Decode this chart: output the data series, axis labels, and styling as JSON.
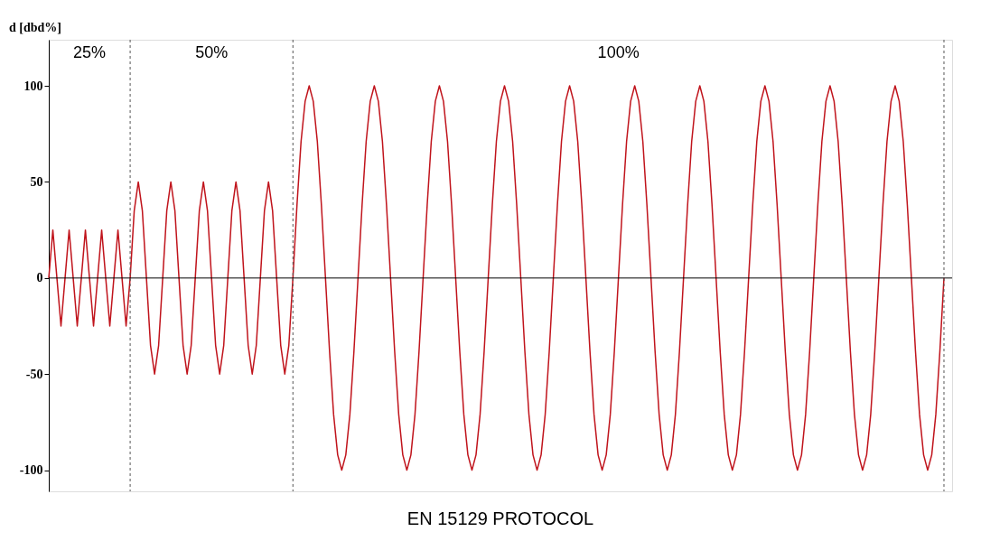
{
  "chart_data": {
    "type": "line",
    "title": "EN 15129 PROTOCOL",
    "ylabel": "d [dbd%]",
    "categories": [
      null,
      null,
      null,
      null,
      null,
      null,
      null,
      null,
      null,
      null,
      null,
      null,
      null,
      null,
      null,
      null,
      null,
      null,
      null,
      null,
      null,
      null,
      null,
      null,
      null,
      null,
      null,
      null,
      null,
      null,
      null,
      null,
      null,
      null,
      null,
      null,
      null,
      null,
      null,
      null,
      null,
      null,
      null,
      null,
      null,
      null,
      null,
      null,
      null,
      null,
      null,
      null,
      null,
      null,
      null,
      null,
      null,
      null,
      null,
      null,
      null,
      null,
      null,
      null,
      null,
      null,
      null,
      null,
      null,
      null,
      null,
      null,
      null,
      null,
      null,
      null,
      null,
      null,
      null,
      null,
      null,
      null,
      null,
      null,
      null,
      null,
      null,
      null,
      null,
      null,
      null,
      null,
      null,
      null,
      null,
      null,
      null,
      null,
      null,
      null,
      null,
      null,
      null,
      null,
      null,
      null,
      null,
      null,
      null,
      null,
      null,
      null,
      null,
      null,
      null,
      null,
      null,
      null,
      null,
      null,
      null,
      null,
      null,
      null,
      null,
      null,
      null,
      null,
      null,
      null,
      null,
      null,
      null,
      null,
      null,
      null,
      null,
      null,
      null,
      null,
      null,
      null,
      null,
      null,
      null,
      null,
      null,
      null,
      null,
      null,
      null,
      null,
      null,
      null,
      null,
      null,
      null,
      null,
      null,
      null,
      null,
      null,
      null,
      null,
      null,
      null,
      null,
      null,
      null,
      null,
      null,
      null,
      null,
      null,
      null,
      null,
      null,
      null,
      null,
      null,
      null,
      null,
      null,
      null,
      null,
      null,
      null,
      null,
      null,
      null,
      null,
      null,
      null,
      null,
      null,
      null,
      null,
      null,
      null,
      null,
      null,
      null,
      null,
      null,
      null,
      null,
      null,
      null,
      null,
      null,
      null,
      null,
      null,
      null,
      null,
      null,
      null,
      null,
      null,
      null,
      null
    ],
    "series": [
      {
        "color": "#c0141c",
        "values": [
          0,
          25,
          0,
          -25,
          0,
          25,
          0,
          -25,
          0,
          25,
          0,
          -25,
          0,
          25,
          0,
          -25,
          0,
          25,
          0,
          -25,
          0,
          35,
          50,
          35,
          0,
          -35,
          -50,
          -35,
          0,
          35,
          50,
          35,
          0,
          -35,
          -50,
          -35,
          0,
          35,
          50,
          35,
          0,
          -35,
          -50,
          -35,
          0,
          35,
          50,
          35,
          0,
          -35,
          -50,
          -35,
          0,
          35,
          50,
          35,
          0,
          -35,
          -50,
          -35,
          0,
          38,
          71,
          92,
          100,
          92,
          71,
          38,
          0,
          -38,
          -71,
          -92,
          -100,
          -92,
          -71,
          -38,
          0,
          38,
          71,
          92,
          100,
          92,
          71,
          38,
          0,
          -38,
          -71,
          -92,
          -100,
          -92,
          -71,
          -38,
          0,
          38,
          71,
          92,
          100,
          92,
          71,
          38,
          0,
          -38,
          -71,
          -92,
          -100,
          -92,
          -71,
          -38,
          0,
          38,
          71,
          92,
          100,
          92,
          71,
          38,
          0,
          -38,
          -71,
          -92,
          -100,
          -92,
          -71,
          -38,
          0,
          38,
          71,
          92,
          100,
          92,
          71,
          38,
          0,
          -38,
          -71,
          -92,
          -100,
          -92,
          -71,
          -38,
          0,
          38,
          71,
          92,
          100,
          92,
          71,
          38,
          0,
          -38,
          -71,
          -92,
          -100,
          -92,
          -71,
          -38,
          0,
          38,
          71,
          92,
          100,
          92,
          71,
          38,
          0,
          -38,
          -71,
          -92,
          -100,
          -92,
          -71,
          -38,
          0,
          38,
          71,
          92,
          100,
          92,
          71,
          38,
          0,
          -38,
          -71,
          -92,
          -100,
          -92,
          -71,
          -38,
          0,
          38,
          71,
          92,
          100,
          92,
          71,
          38,
          0,
          -38,
          -71,
          -92,
          -100,
          -92,
          -71,
          -38,
          0,
          38,
          71,
          92,
          100,
          92,
          71,
          38,
          0,
          -38,
          -71,
          -92,
          -100,
          -92,
          -71,
          -38,
          0
        ]
      }
    ],
    "ylim": [
      -111,
      124
    ],
    "yticks": [
      -100,
      -50,
      0,
      50,
      100
    ],
    "tick_labels": "y",
    "grid": false,
    "marker": "none",
    "line_style": "solid",
    "ref_lines": [
      {
        "axis": "y",
        "value": 0,
        "color": "#000000",
        "line_style": "solid"
      }
    ],
    "annotations": [
      "25%",
      "50%",
      "100%"
    ]
  }
}
